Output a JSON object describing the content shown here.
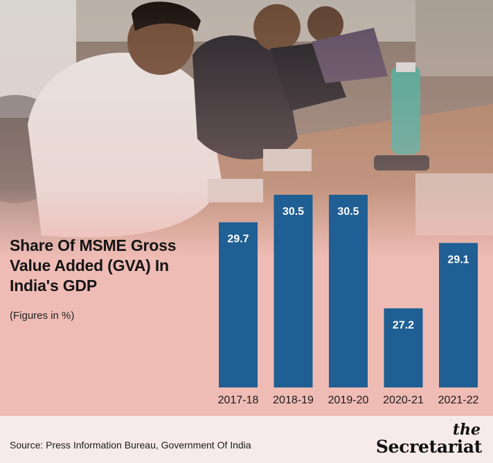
{
  "chart_data": {
    "type": "bar",
    "title": "Share Of MSME Gross Value Added (GVA) In India's GDP",
    "subtitle": "(Figures in %)",
    "categories": [
      "2017-18",
      "2018-19",
      "2019-20",
      "2020-21",
      "2021-22"
    ],
    "values": [
      29.7,
      30.5,
      30.5,
      27.2,
      29.1
    ],
    "data_labels": [
      "29.7",
      "30.5",
      "30.5",
      "27.2",
      "29.1"
    ],
    "xlabel": "",
    "ylabel": "",
    "ylim": [
      24.9,
      30.5
    ],
    "grid": false,
    "legend": "none",
    "colors": {
      "bar": "#1f5f94",
      "label": "#ffffff",
      "axis_text": "#1a1a1a"
    }
  },
  "footer": {
    "source": "Source: Press Information Bureau, Government Of India",
    "brand_the": "the",
    "brand_name": "Secretariat"
  }
}
